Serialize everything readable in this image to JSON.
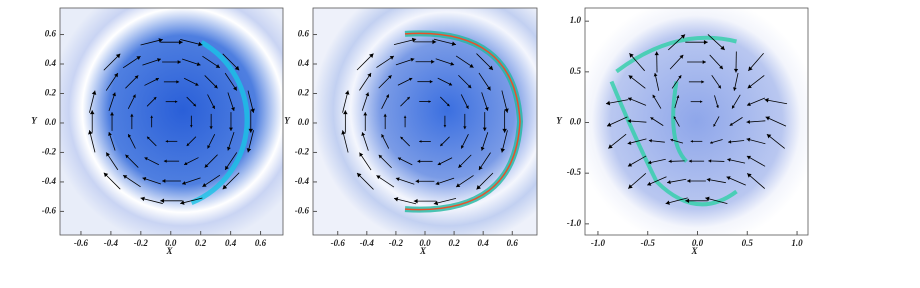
{
  "chart_data": [
    {
      "type": "vector-field",
      "xlabel": "X",
      "ylabel": "Y",
      "xlim": [
        -0.74,
        0.75
      ],
      "ylim": [
        -0.76,
        0.78
      ],
      "xticks": [
        -0.6,
        -0.4,
        -0.2,
        {
          "value": 0,
          "label": "0.0"
        },
        0.2,
        0.4,
        0.6
      ],
      "yticks": [
        0.6,
        0.4,
        0.2,
        {
          "value": 0,
          "label": "0.0"
        },
        -0.2,
        -0.4,
        -0.6
      ]
    },
    {
      "type": "vector-field",
      "xlabel": "X",
      "ylabel": "Y",
      "xlim": [
        -0.77,
        0.77
      ],
      "ylim": [
        -0.76,
        0.78
      ],
      "xticks": [
        -0.6,
        -0.4,
        -0.2,
        {
          "value": 0,
          "label": "0.0"
        },
        0.2,
        0.4,
        0.6
      ],
      "yticks": [
        0.6,
        0.4,
        0.2,
        {
          "value": 0,
          "label": "0.0"
        },
        -0.2,
        -0.4,
        -0.6
      ]
    },
    {
      "type": "vector-field",
      "xlabel": "X",
      "ylabel": "Y",
      "xlim": [
        -1.13,
        1.11
      ],
      "ylim": [
        -1.11,
        1.13
      ],
      "xticks": [
        {
          "value": -1,
          "label": "-1.0"
        },
        -0.5,
        {
          "value": 0,
          "label": "0.0"
        },
        0.5,
        {
          "value": 1,
          "label": "1.0"
        }
      ],
      "yticks": [
        {
          "value": 1,
          "label": "1.0"
        },
        0.5,
        {
          "value": 0,
          "label": "0.0"
        },
        -0.5,
        {
          "value": -1,
          "label": "-1.0"
        }
      ]
    }
  ]
}
